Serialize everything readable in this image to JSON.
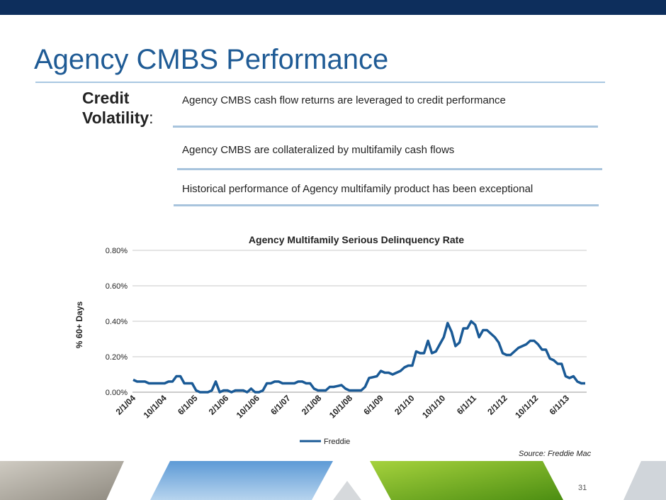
{
  "slide": {
    "title": "Agency CMBS Performance",
    "section_label_line1": "Credit",
    "section_label_line2": "Volatility",
    "section_label_colon": ":",
    "bullets": [
      "Agency CMBS cash flow returns are leveraged to credit performance",
      "Agency CMBS are collateralized by multifamily cash flows",
      "Historical performance of Agency multifamily product has been exceptional"
    ],
    "source": "Source: Freddie Mac",
    "page_number": "31"
  },
  "colors": {
    "top_bar": "#0d2e5c",
    "title": "#1f5b95",
    "series_line": "#1a5a96"
  },
  "chart_data": {
    "type": "line",
    "title": "Agency Multifamily Serious Delinquency Rate",
    "ylabel": "% 60+ Days",
    "xlabel": "",
    "ylim": [
      0,
      0.8
    ],
    "y_ticks": [
      "0.00%",
      "0.20%",
      "0.40%",
      "0.60%",
      "0.80%"
    ],
    "x_tick_labels": [
      "2/1/04",
      "10/1/04",
      "6/1/05",
      "2/1/06",
      "10/1/06",
      "6/1/07",
      "2/1/08",
      "10/1/08",
      "6/1/09",
      "2/1/10",
      "10/1/10",
      "6/1/11",
      "2/1/12",
      "10/1/12",
      "6/1/13"
    ],
    "grid": true,
    "legend_position": "bottom",
    "series": [
      {
        "name": "Freddie",
        "values": [
          0.07,
          0.06,
          0.06,
          0.06,
          0.05,
          0.05,
          0.05,
          0.05,
          0.05,
          0.06,
          0.06,
          0.09,
          0.09,
          0.05,
          0.05,
          0.05,
          0.01,
          0.0,
          0.0,
          0.0,
          0.01,
          0.06,
          0.0,
          0.01,
          0.01,
          0.0,
          0.01,
          0.01,
          0.01,
          0.0,
          0.02,
          0.0,
          0.0,
          0.01,
          0.05,
          0.05,
          0.06,
          0.06,
          0.05,
          0.05,
          0.05,
          0.05,
          0.06,
          0.06,
          0.05,
          0.05,
          0.02,
          0.01,
          0.01,
          0.01,
          0.03,
          0.03,
          0.035,
          0.04,
          0.02,
          0.01,
          0.01,
          0.01,
          0.01,
          0.03,
          0.08,
          0.085,
          0.09,
          0.12,
          0.11,
          0.11,
          0.1,
          0.11,
          0.12,
          0.14,
          0.15,
          0.15,
          0.23,
          0.22,
          0.22,
          0.29,
          0.22,
          0.23,
          0.27,
          0.31,
          0.39,
          0.34,
          0.26,
          0.28,
          0.36,
          0.36,
          0.4,
          0.38,
          0.31,
          0.35,
          0.35,
          0.33,
          0.31,
          0.28,
          0.22,
          0.21,
          0.21,
          0.23,
          0.25,
          0.26,
          0.27,
          0.29,
          0.29,
          0.27,
          0.24,
          0.24,
          0.19,
          0.18,
          0.16,
          0.16,
          0.09,
          0.08,
          0.09,
          0.06,
          0.05,
          0.05
        ]
      }
    ]
  }
}
